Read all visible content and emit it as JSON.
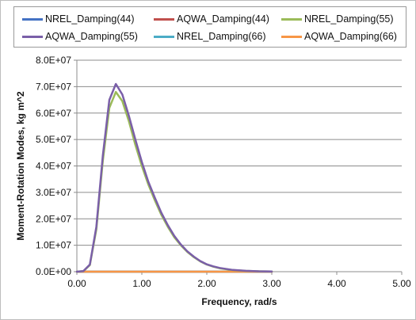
{
  "chart_data": {
    "type": "line",
    "title": "",
    "xlabel": "Frequency, rad/s",
    "ylabel": "Moment-Rotation Modes, kg m^2",
    "xlim": [
      0,
      5
    ],
    "ylim": [
      0,
      80000000
    ],
    "x_ticks": [
      "0.00",
      "1.00",
      "2.00",
      "3.00",
      "4.00",
      "5.00"
    ],
    "y_ticks": [
      "0.0E+00",
      "1.0E+07",
      "2.0E+07",
      "3.0E+07",
      "4.0E+07",
      "5.0E+07",
      "6.0E+07",
      "7.0E+07",
      "8.0E+07"
    ],
    "grid": "horizontal",
    "legend_position": "top",
    "x": [
      0.0,
      0.1,
      0.2,
      0.3,
      0.4,
      0.5,
      0.6,
      0.7,
      0.8,
      0.9,
      1.0,
      1.1,
      1.2,
      1.3,
      1.4,
      1.5,
      1.6,
      1.7,
      1.8,
      1.9,
      2.0,
      2.1,
      2.2,
      2.4,
      2.6,
      2.8,
      3.0
    ],
    "series": [
      {
        "name": "NREL_Damping(44)",
        "color": "#4472c4",
        "values": [
          0,
          0,
          0,
          0,
          0,
          0,
          0,
          0,
          0,
          0,
          0,
          0,
          0,
          0,
          0,
          0,
          0,
          0,
          0,
          0,
          0,
          0,
          0,
          0,
          0,
          0,
          0
        ]
      },
      {
        "name": "AQWA_Damping(44)",
        "color": "#c0504d",
        "values": [
          0,
          0,
          0,
          0,
          0,
          0,
          0,
          0,
          0,
          0,
          0,
          0,
          0,
          0,
          0,
          0,
          0,
          0,
          0,
          0,
          0,
          0,
          0,
          0,
          0,
          0,
          0
        ]
      },
      {
        "name": "NREL_Damping(55)",
        "color": "#9bbb59",
        "values": [
          0,
          200000,
          2500000,
          16000000,
          42000000,
          62000000,
          68000000,
          64500000,
          57000000,
          48000000,
          40000000,
          33000000,
          27000000,
          21500000,
          17000000,
          13000000,
          10000000,
          7500000,
          5500000,
          3900000,
          2700000,
          1900000,
          1300000,
          600000,
          300000,
          150000,
          80000
        ]
      },
      {
        "name": "AQWA_Damping(55)",
        "color": "#7a5fa8",
        "values": [
          0,
          200000,
          2700000,
          17000000,
          44000000,
          65000000,
          71000000,
          67000000,
          59000000,
          50000000,
          41500000,
          34000000,
          28000000,
          22300000,
          17600000,
          13500000,
          10300000,
          7700000,
          5700000,
          4000000,
          2800000,
          2000000,
          1400000,
          650000,
          320000,
          160000,
          90000
        ]
      },
      {
        "name": "NREL_Damping(66)",
        "color": "#4bacc6",
        "values": [
          0,
          0,
          0,
          0,
          0,
          0,
          0,
          0,
          0,
          0,
          0,
          0,
          0,
          0,
          0,
          0,
          0,
          0,
          0,
          0,
          0,
          0,
          0,
          0,
          0,
          0,
          0
        ]
      },
      {
        "name": "AQWA_Damping(66)",
        "color": "#f79646",
        "values": [
          0,
          0,
          0,
          0,
          0,
          0,
          0,
          0,
          0,
          0,
          0,
          0,
          0,
          0,
          0,
          0,
          0,
          0,
          0,
          0,
          0,
          0,
          0,
          0,
          0,
          0,
          0
        ]
      }
    ]
  }
}
